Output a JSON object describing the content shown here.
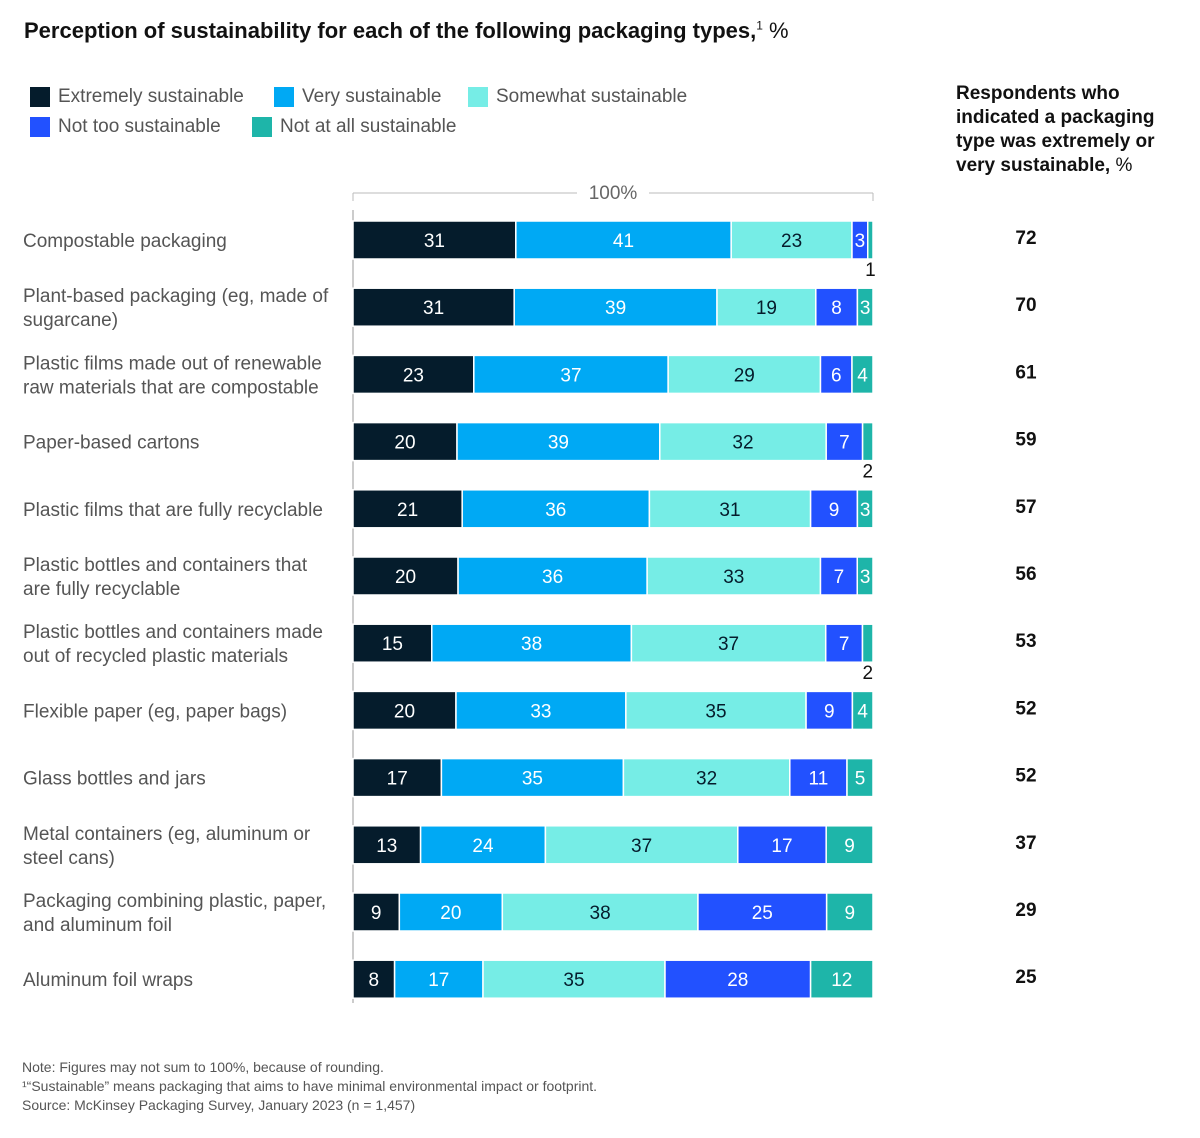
{
  "title": "Perception of sustainability for each of the following packaging types,",
  "title_sup": "1",
  "title_unit": " %",
  "scale_label": "100%",
  "side_title": "Respondents who indicated a packaging type was extremely or very sustainable,",
  "side_title_unit": " %",
  "colors": {
    "extremely": "#051c2c",
    "very": "#00a9f4",
    "somewhat": "#76ede6",
    "not_too": "#2251ff",
    "not_at_all": "#1eb5a9"
  },
  "legend": [
    {
      "label": "Extremely sustainable",
      "color": "#051c2c"
    },
    {
      "label": "Very sustainable",
      "color": "#00a9f4"
    },
    {
      "label": "Somewhat sustainable",
      "color": "#76ede6"
    },
    {
      "label": "Not too sustainable",
      "color": "#2251ff"
    },
    {
      "label": "Not at all sustainable",
      "color": "#1eb5a9"
    }
  ],
  "chart_data": {
    "type": "bar",
    "orientation": "horizontal",
    "stacked": true,
    "unit": "%",
    "series_names": [
      "Extremely sustainable",
      "Very sustainable",
      "Somewhat sustainable",
      "Not too sustainable",
      "Not at all sustainable"
    ],
    "rows": [
      {
        "label": [
          "Compostable packaging"
        ],
        "values": [
          31,
          41,
          23,
          3,
          1
        ],
        "total": 72
      },
      {
        "label": [
          "Plant-based packaging (eg, made of",
          "sugarcane)"
        ],
        "values": [
          31,
          39,
          19,
          8,
          3
        ],
        "total": 70
      },
      {
        "label": [
          "Plastic films made out of renewable",
          "raw materials that are compostable"
        ],
        "values": [
          23,
          37,
          29,
          6,
          4
        ],
        "total": 61
      },
      {
        "label": [
          "Paper-based cartons"
        ],
        "values": [
          20,
          39,
          32,
          7,
          2
        ],
        "total": 59
      },
      {
        "label": [
          "Plastic films that are fully recyclable"
        ],
        "values": [
          21,
          36,
          31,
          9,
          3
        ],
        "total": 57
      },
      {
        "label": [
          "Plastic bottles and containers that",
          "are fully recyclable"
        ],
        "values": [
          20,
          36,
          33,
          7,
          3
        ],
        "total": 56
      },
      {
        "label": [
          "Plastic bottles and containers made",
          "out of recycled plastic materials"
        ],
        "values": [
          15,
          38,
          37,
          7,
          2
        ],
        "total": 53
      },
      {
        "label": [
          "Flexible paper (eg, paper bags)"
        ],
        "values": [
          20,
          33,
          35,
          9,
          4
        ],
        "total": 52
      },
      {
        "label": [
          "Glass bottles and jars"
        ],
        "values": [
          17,
          35,
          32,
          11,
          5
        ],
        "total": 52
      },
      {
        "label": [
          "Metal containers (eg, aluminum or",
          "steel cans)"
        ],
        "values": [
          13,
          24,
          37,
          17,
          9
        ],
        "total": 37
      },
      {
        "label": [
          "Packaging combining plastic, paper,",
          "and aluminum foil"
        ],
        "values": [
          9,
          20,
          38,
          25,
          9
        ],
        "total": 29
      },
      {
        "label": [
          "Aluminum foil wraps"
        ],
        "values": [
          8,
          17,
          35,
          28,
          12
        ],
        "total": 25
      }
    ]
  },
  "footnotes": [
    "Note: Figures may not sum to 100%, because of rounding.",
    "¹“Sustainable” means packaging that aims to have minimal environmental impact or footprint.",
    "Source: McKinsey Packaging Survey, January 2023 (n = 1,457)"
  ]
}
